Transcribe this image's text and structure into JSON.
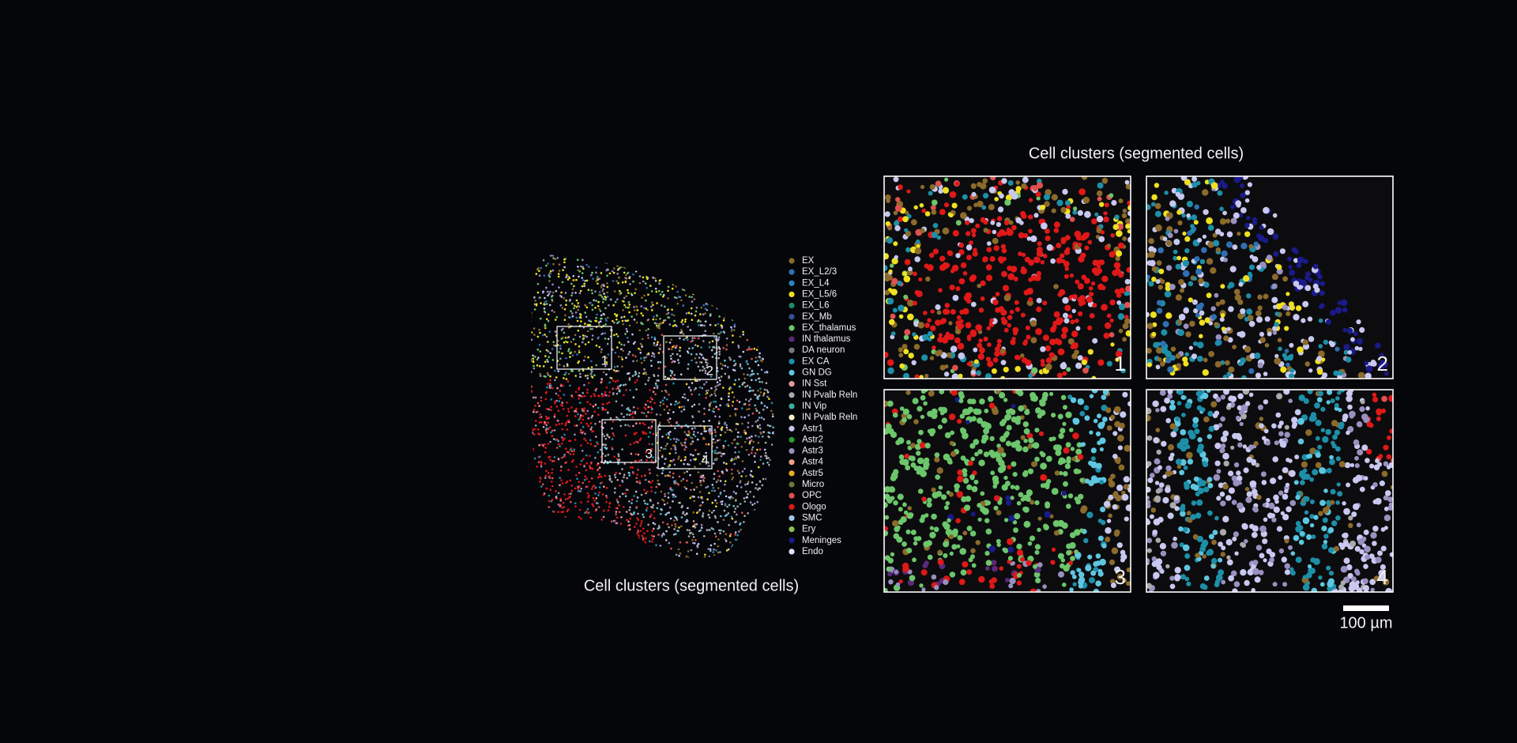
{
  "overview": {
    "caption": "Cell clusters (segmented cells)",
    "boxes": [
      "1",
      "2",
      "3",
      "4"
    ]
  },
  "legend": {
    "items": [
      {
        "label": "EX",
        "color": "#8b6a2b"
      },
      {
        "label": "EX_L2/3",
        "color": "#2f6fb3"
      },
      {
        "label": "EX_L4",
        "color": "#2a86c0"
      },
      {
        "label": "EX_L5/6",
        "color": "#f0e020"
      },
      {
        "label": "EX_L6",
        "color": "#1e8a6a"
      },
      {
        "label": "EX_Mb",
        "color": "#3a4f9a"
      },
      {
        "label": "EX_thalamus",
        "color": "#6cc66c"
      },
      {
        "label": "IN thalamus",
        "color": "#5a2a7a"
      },
      {
        "label": "DA neuron",
        "color": "#7a7a7a"
      },
      {
        "label": "EX CA",
        "color": "#1e8fa8"
      },
      {
        "label": "GN DG",
        "color": "#5fc6e0"
      },
      {
        "label": "IN Sst",
        "color": "#e89aa0"
      },
      {
        "label": "IN Pvalb Reln",
        "color": "#aaaaaa"
      },
      {
        "label": "IN Vip",
        "color": "#3ab0a0"
      },
      {
        "label": "IN Pvalb Reln",
        "color": "#f5f0c0"
      },
      {
        "label": "Astr1",
        "color": "#c8c8f0"
      },
      {
        "label": "Astr2",
        "color": "#2e9e2e"
      },
      {
        "label": "Astr3",
        "color": "#9a90c0"
      },
      {
        "label": "Astr4",
        "color": "#f0a080"
      },
      {
        "label": "Astr5",
        "color": "#e8b020"
      },
      {
        "label": "Micro",
        "color": "#6b7a3a"
      },
      {
        "label": "OPC",
        "color": "#e05050"
      },
      {
        "label": "Ologo",
        "color": "#e01818"
      },
      {
        "label": "SMC",
        "color": "#a0c8e8"
      },
      {
        "label": "Ery",
        "color": "#8ac050"
      },
      {
        "label": "Meninges",
        "color": "#1a1a8a"
      },
      {
        "label": "Endo",
        "color": "#e0e0f8"
      }
    ]
  },
  "zoom": {
    "title": "Cell clusters (segmented cells)",
    "panels": [
      "1",
      "2",
      "3",
      "4"
    ]
  },
  "scale_bar": {
    "label": "100 µm"
  }
}
